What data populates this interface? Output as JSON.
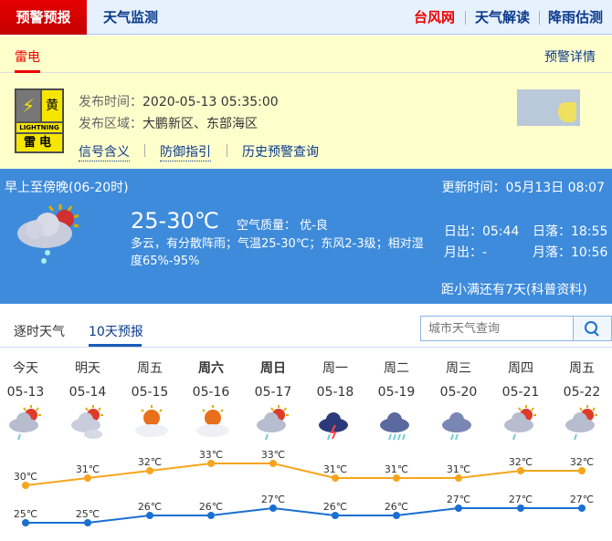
{
  "nav": {
    "active": "预警预报",
    "monitor": "天气监测",
    "right": [
      "台风网",
      "天气解读",
      "降雨估测"
    ]
  },
  "warning": {
    "tab": "雷电",
    "detail_link": "预警详情",
    "sign": {
      "color_char": "黄",
      "english": "LIGHTNING",
      "name": "雷电",
      "color": "#f5e600"
    },
    "time_label": "发布时间：",
    "time": "2020-05-13 05:35:00",
    "area_label": "发布区域：",
    "area": "大鹏新区、东部海区",
    "links": [
      "信号含义",
      "防御指引",
      "历史预警查询"
    ]
  },
  "today": {
    "period": "早上至傍晚(06-20时)",
    "update": "更新时间：05月13日 08:07",
    "temp": "25-30℃",
    "aqi": "空气质量： 优-良",
    "desc": "多云，有分散阵雨；气温25-30℃；东风2-3级；相对湿度65%-95%",
    "sunrise": "日出：05:44",
    "sunset": "日落：18:55",
    "moonrise": "月出：-",
    "moonset": "月落：10:56",
    "solar_term": "距小满还有7天(科普资料)",
    "icon": "cloudy-sun-rain"
  },
  "tabs": [
    "逐时天气",
    "10天预报"
  ],
  "search": {
    "placeholder": "城市天气查询"
  },
  "forecast": {
    "days": [
      {
        "name": "今天",
        "date": "05-13",
        "icon": "sun-cloud-rain"
      },
      {
        "name": "明天",
        "date": "05-14",
        "icon": "sun-cloudy"
      },
      {
        "name": "周五",
        "date": "05-15",
        "icon": "sun-cloud"
      },
      {
        "name": "周六",
        "date": "05-16",
        "icon": "sun-cloud"
      },
      {
        "name": "周日",
        "date": "05-17",
        "icon": "sun-cloud-rain"
      },
      {
        "name": "周一",
        "date": "05-18",
        "icon": "thunderstorm"
      },
      {
        "name": "周二",
        "date": "05-19",
        "icon": "heavy-rain"
      },
      {
        "name": "周三",
        "date": "05-20",
        "icon": "rain"
      },
      {
        "name": "周四",
        "date": "05-21",
        "icon": "sun-cloud-rain"
      },
      {
        "name": "周五",
        "date": "05-22",
        "icon": "sun-cloud-rain"
      }
    ]
  },
  "chart_data": {
    "type": "line",
    "categories": [
      "05-13",
      "05-14",
      "05-15",
      "05-16",
      "05-17",
      "05-18",
      "05-19",
      "05-20",
      "05-21",
      "05-22"
    ],
    "series": [
      {
        "values": [
          30,
          31,
          32,
          33,
          33,
          31,
          31,
          31,
          32,
          32
        ],
        "color": "#f7a51c"
      },
      {
        "values": [
          25,
          25,
          26,
          26,
          27,
          26,
          26,
          27,
          27,
          27
        ],
        "color": "#1a6fd0"
      }
    ],
    "unit": "℃"
  }
}
